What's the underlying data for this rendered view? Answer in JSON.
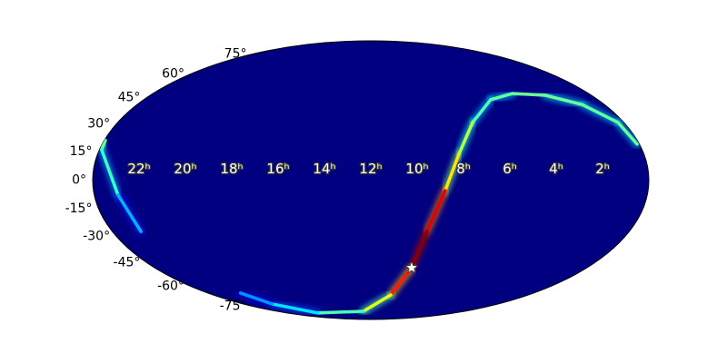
{
  "chart_data": {
    "type": "skymap",
    "projection": "mollweide",
    "colormap": "jet",
    "background_color": "#000080",
    "lat_ticks": [
      {
        "value": 75,
        "label": "75°"
      },
      {
        "value": 60,
        "label": "60°"
      },
      {
        "value": 45,
        "label": "45°"
      },
      {
        "value": 30,
        "label": "30°"
      },
      {
        "value": 15,
        "label": "15°"
      },
      {
        "value": 0,
        "label": "0°"
      },
      {
        "value": -15,
        "label": "-15°"
      },
      {
        "value": -30,
        "label": "-30°"
      },
      {
        "value": -45,
        "label": "-45°"
      },
      {
        "value": -60,
        "label": "-60°"
      },
      {
        "value": -75,
        "label": "-75°"
      }
    ],
    "ra_ticks": [
      {
        "value": 22,
        "label": "22ʰ"
      },
      {
        "value": 20,
        "label": "20ʰ"
      },
      {
        "value": 18,
        "label": "18ʰ"
      },
      {
        "value": 16,
        "label": "16ʰ"
      },
      {
        "value": 14,
        "label": "14ʰ"
      },
      {
        "value": 12,
        "label": "12ʰ"
      },
      {
        "value": 10,
        "label": "10ʰ"
      },
      {
        "value": 8,
        "label": "8ʰ"
      },
      {
        "value": 6,
        "label": "6ʰ"
      },
      {
        "value": 4,
        "label": "4ʰ"
      },
      {
        "value": 2,
        "label": "2ʰ"
      }
    ],
    "series": [
      {
        "ra": [
          0.1,
          0.28,
          1.15,
          2.5,
          4.2,
          5.66,
          7.17,
          8.13,
          8.78,
          9.39,
          9.73,
          10.48,
          12.93,
          19.6,
          21.3,
          21.6
        ],
        "dec": [
          19,
          30.8,
          41,
          46.4,
          47.5,
          43.8,
          30.8,
          13.6,
          -5.5,
          -27.3,
          -48.1,
          -66,
          -79.4,
          -81.2,
          -73,
          -64.7
        ],
        "intensity": [
          0.35,
          0.33,
          0.32,
          0.33,
          0.33,
          0.32,
          0.3,
          0.4,
          0.5,
          0.75,
          0.95,
          0.7,
          0.45,
          0.3,
          0.2,
          0.12
        ]
      },
      {
        "ra": [
          23.95,
          23.9,
          22.97,
          22.67
        ],
        "dec": [
          21,
          16,
          -7.8,
          -27.3
        ],
        "intensity": [
          0.35,
          0.33,
          0.28,
          0.15
        ]
      }
    ],
    "marker": {
      "ra": 9.73,
      "dec": -48.1,
      "color": "#ffffff"
    }
  }
}
